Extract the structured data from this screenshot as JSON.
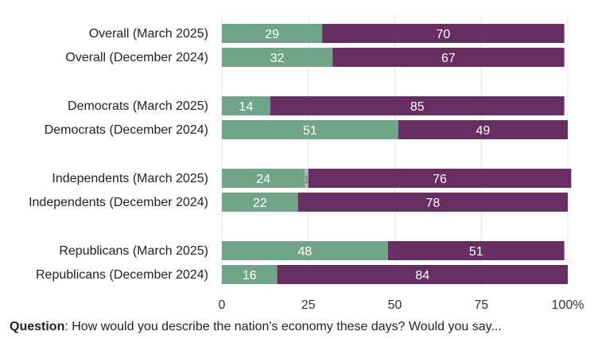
{
  "chart_data": {
    "type": "bar",
    "orientation": "horizontal",
    "stacked": true,
    "title": "",
    "xlabel": "",
    "ylabel": "",
    "xlim": [
      0,
      100
    ],
    "x_ticks": [
      "0",
      "25",
      "50",
      "75",
      "100%"
    ],
    "grid": true,
    "categories": [
      "Overall (March 2025)",
      "Overall (December 2024)",
      "Democrats (March 2025)",
      "Democrats (December 2024)",
      "Independents (March 2025)",
      "Independents (December 2024)",
      "Republicans (March 2025)",
      "Republicans (December 2024)"
    ],
    "series": [
      {
        "values": [
          29,
          32,
          14,
          51,
          24,
          22,
          48,
          16
        ],
        "color": "#72a48a"
      },
      {
        "values": [
          0,
          0,
          0,
          0,
          1,
          0,
          0,
          0
        ],
        "color": "#b7b7b7"
      },
      {
        "values": [
          70,
          67,
          85,
          49,
          76,
          78,
          51,
          84
        ],
        "color": "#672e62"
      }
    ],
    "data_labels": [
      [
        "29",
        "32",
        "14",
        "51",
        "24",
        "22",
        "48",
        "16"
      ],
      [
        "",
        "",
        "",
        "",
        "1",
        "",
        "",
        ""
      ],
      [
        "70",
        "67",
        "85",
        "49",
        "76",
        "78",
        "51",
        "84"
      ]
    ]
  },
  "footer": {
    "question_label": "Question",
    "question_text": ": How would you describe the nation's economy these days? Would you say..."
  }
}
